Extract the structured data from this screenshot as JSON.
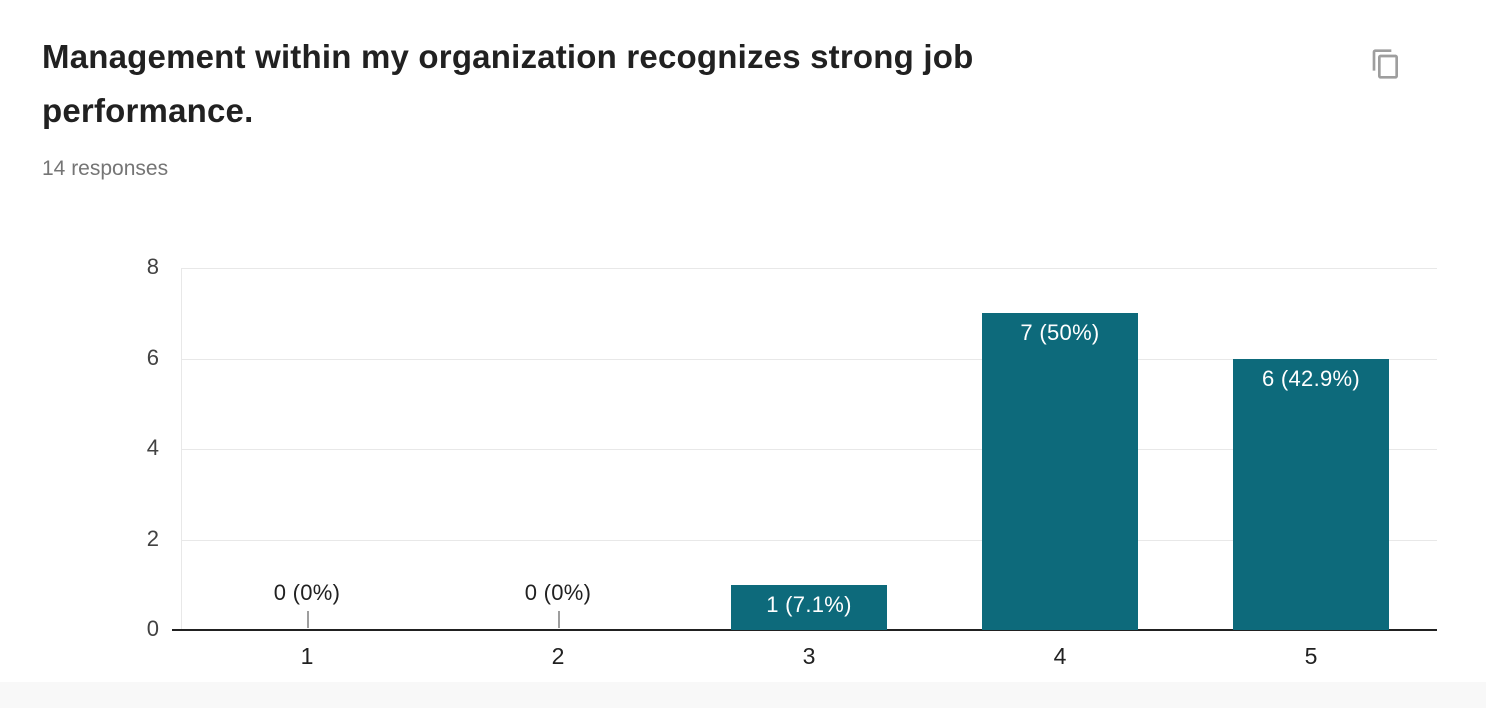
{
  "header": {
    "title": "Management within my organization recognizes strong job performance.",
    "responses_count": "14 responses"
  },
  "icons": {
    "copy_button": "content-copy-icon",
    "copy_color": "#9e9e9e"
  },
  "chart_data": {
    "type": "bar",
    "title": "Management within my organization recognizes strong job performance.",
    "subtitle": "14 responses",
    "categories": [
      "1",
      "2",
      "3",
      "4",
      "5"
    ],
    "values": [
      0,
      0,
      1,
      7,
      6
    ],
    "bar_labels": [
      "0 (0%)",
      "0 (0%)",
      "1 (7.1%)",
      "7 (50%)",
      "6 (42.9%)"
    ],
    "total_responses": 14,
    "xlabel": "",
    "ylabel": "",
    "ylim": [
      0,
      8
    ],
    "yticks": [
      0,
      2,
      4,
      6,
      8
    ],
    "grid": true,
    "legend": "none",
    "colors": {
      "bar": "#0d6a7b",
      "label_inside_bar": "#ffffff",
      "label_outside_bar": "#212121",
      "gridline": "#e8e8e8",
      "baseline": "#212121",
      "leader_line": "#9e9e9e",
      "y_tick_text": "#424242",
      "x_tick_text": "#212121"
    }
  }
}
